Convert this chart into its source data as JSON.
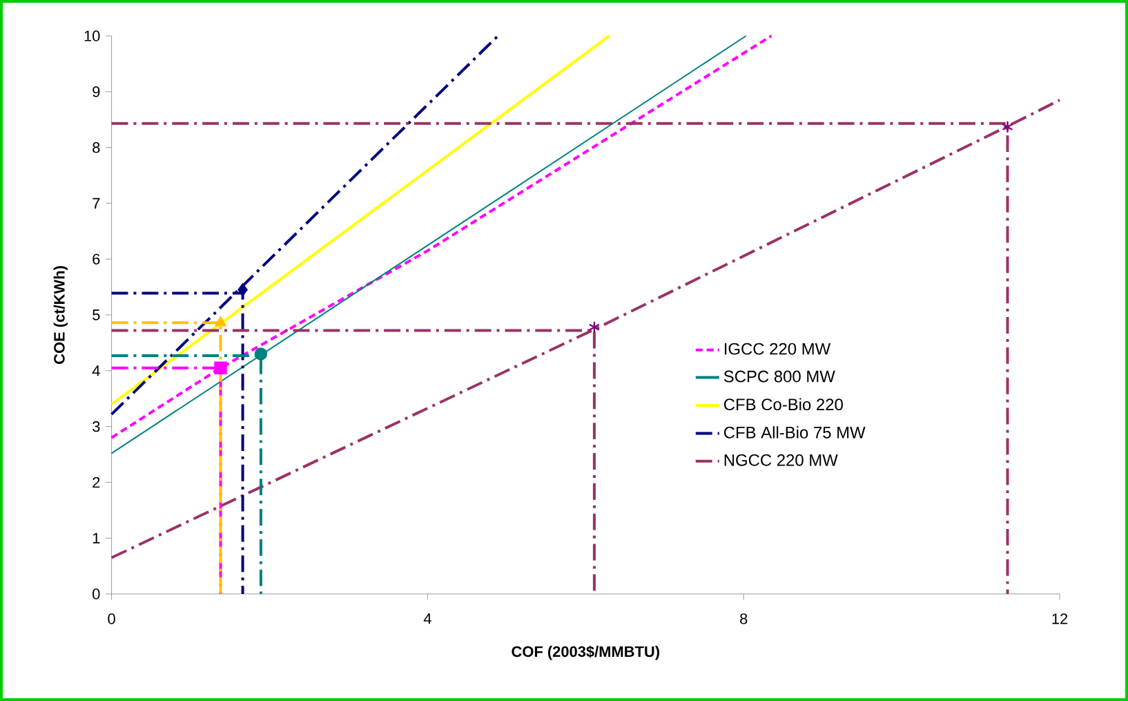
{
  "chart_data": {
    "type": "line",
    "xlabel": "COF (2003$/MMBTU)",
    "ylabel": "COE (ct/KWh)",
    "xlim": [
      0,
      12
    ],
    "ylim": [
      0,
      10
    ],
    "xticks": [
      0,
      4,
      8,
      12
    ],
    "yticks": [
      0,
      1,
      2,
      3,
      4,
      5,
      6,
      7,
      8,
      9,
      10
    ],
    "grid": false,
    "legend": "right",
    "series": [
      {
        "name": "IGCC 220 MW",
        "color": "#ff00ff",
        "line_style": "dotted",
        "x": [
          0,
          1.38,
          4.0,
          8.35
        ],
        "values": [
          2.8,
          4.05,
          6.15,
          10
        ]
      },
      {
        "name": "SCPC 800 MW",
        "color": "#008080",
        "line_style": "solid",
        "x": [
          0,
          8.03
        ],
        "values": [
          2.52,
          10
        ]
      },
      {
        "name": "CFB Co-Bio 220",
        "color": "#ffff00",
        "line_style": "solid",
        "x": [
          0,
          6.3
        ],
        "values": [
          3.4,
          10
        ]
      },
      {
        "name": "CFB All-Bio 75 MW",
        "color": "#000080",
        "line_style": "dashdot",
        "x": [
          0,
          4.89
        ],
        "values": [
          3.22,
          10
        ]
      },
      {
        "name": "NGCC 220 MW",
        "color": "#993366",
        "line_style": "dashdot",
        "x": [
          0,
          6.11,
          11.34,
          12
        ],
        "values": [
          0.65,
          4.74,
          8.38,
          8.85
        ]
      },
      {
        "type": "line",
        "color": "#ff00ff",
        "line_style": "dashdot",
        "x": [
          0,
          1.38,
          1.38
        ],
        "values": [
          4.05,
          4.05,
          0
        ]
      },
      {
        "type": "line",
        "color": "#ffc000",
        "line_style": "dashdot",
        "x": [
          0,
          1.38,
          1.38
        ],
        "values": [
          4.86,
          4.86,
          0
        ]
      },
      {
        "type": "line",
        "color": "#000080",
        "line_style": "dashdot",
        "x": [
          0,
          1.66,
          1.66
        ],
        "values": [
          5.39,
          5.39,
          0
        ]
      },
      {
        "type": "line",
        "color": "#008080",
        "line_style": "dashdot",
        "x": [
          0,
          1.89,
          1.89
        ],
        "values": [
          4.27,
          4.27,
          0
        ]
      },
      {
        "type": "line",
        "color": "#993366",
        "line_style": "dashdot",
        "x": [
          0,
          6.11,
          6.11
        ],
        "values": [
          4.72,
          4.72,
          0
        ]
      },
      {
        "type": "line",
        "color": "#993366",
        "line_style": "dashdot",
        "x": [
          0,
          11.34,
          11.34
        ],
        "values": [
          8.43,
          8.43,
          0
        ]
      },
      {
        "type": "scatter",
        "color": "#ff00ff",
        "marker": "square",
        "x": [
          1.38
        ],
        "values": [
          4.05
        ]
      },
      {
        "type": "scatter",
        "color": "#ffc000",
        "marker": "triangle",
        "x": [
          1.38
        ],
        "values": [
          4.86
        ]
      },
      {
        "type": "scatter",
        "color": "#000080",
        "marker": "diamond",
        "x": [
          1.66
        ],
        "values": [
          5.45
        ]
      },
      {
        "type": "scatter",
        "color": "#008080",
        "marker": "circle",
        "x": [
          1.89
        ],
        "values": [
          4.3
        ]
      },
      {
        "type": "scatter",
        "color": "#800080",
        "marker": "cross",
        "x": [
          6.11
        ],
        "values": [
          4.78
        ]
      },
      {
        "type": "scatter",
        "color": "#800080",
        "marker": "cross",
        "x": [
          11.34
        ],
        "values": [
          8.37
        ]
      }
    ]
  }
}
